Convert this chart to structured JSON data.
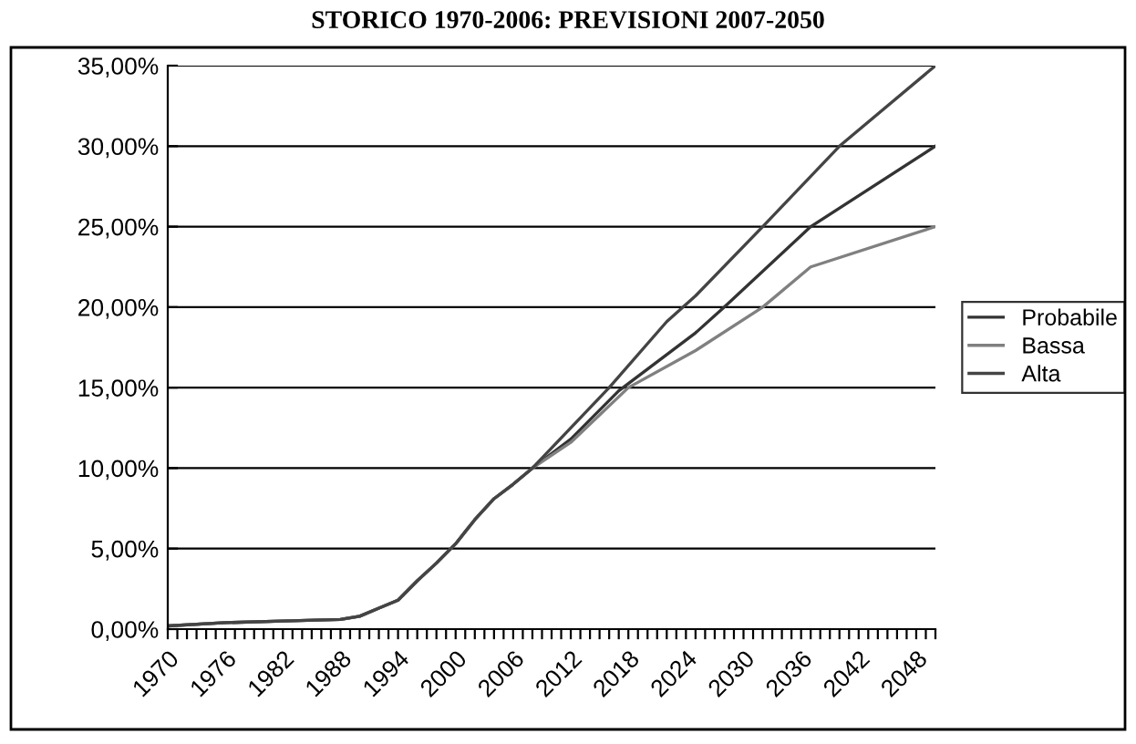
{
  "chart_data": {
    "type": "line",
    "title": "STORICO 1970-2006: PREVISIONI 2007-2050",
    "xlim": [
      1970,
      2050
    ],
    "ylim": [
      0,
      35
    ],
    "yticks": [
      {
        "value": 0,
        "label": "0,00%"
      },
      {
        "value": 5,
        "label": "5,00%"
      },
      {
        "value": 10,
        "label": "10,00%"
      },
      {
        "value": 15,
        "label": "15,00%"
      },
      {
        "value": 20,
        "label": "20,00%"
      },
      {
        "value": 25,
        "label": "25,00%"
      },
      {
        "value": 30,
        "label": "30,00%"
      },
      {
        "value": 35,
        "label": "35,00%"
      }
    ],
    "xticks": [
      1970,
      {
        "value": 1971,
        "label": null
      },
      {
        "value": 1972,
        "label": null
      },
      {
        "value": 1973,
        "label": null
      },
      {
        "value": 1974,
        "label": null
      },
      {
        "value": 1975,
        "label": null
      },
      1976,
      {
        "value": 1977,
        "label": null
      },
      {
        "value": 1978,
        "label": null
      },
      {
        "value": 1979,
        "label": null
      },
      {
        "value": 1980,
        "label": null
      },
      {
        "value": 1981,
        "label": null
      },
      1982,
      {
        "value": 1983,
        "label": null
      },
      {
        "value": 1984,
        "label": null
      },
      {
        "value": 1985,
        "label": null
      },
      {
        "value": 1986,
        "label": null
      },
      {
        "value": 1987,
        "label": null
      },
      1988,
      {
        "value": 1989,
        "label": null
      },
      {
        "value": 1990,
        "label": null
      },
      {
        "value": 1991,
        "label": null
      },
      {
        "value": 1992,
        "label": null
      },
      {
        "value": 1993,
        "label": null
      },
      1994,
      {
        "value": 1995,
        "label": null
      },
      {
        "value": 1996,
        "label": null
      },
      {
        "value": 1997,
        "label": null
      },
      {
        "value": 1998,
        "label": null
      },
      {
        "value": 1999,
        "label": null
      },
      2000,
      {
        "value": 2001,
        "label": null
      },
      {
        "value": 2002,
        "label": null
      },
      {
        "value": 2003,
        "label": null
      },
      {
        "value": 2004,
        "label": null
      },
      {
        "value": 2005,
        "label": null
      },
      2006,
      {
        "value": 2007,
        "label": null
      },
      {
        "value": 2008,
        "label": null
      },
      {
        "value": 2009,
        "label": null
      },
      {
        "value": 2010,
        "label": null
      },
      {
        "value": 2011,
        "label": null
      },
      2012,
      {
        "value": 2013,
        "label": null
      },
      {
        "value": 2014,
        "label": null
      },
      {
        "value": 2015,
        "label": null
      },
      {
        "value": 2016,
        "label": null
      },
      {
        "value": 2017,
        "label": null
      },
      2018,
      {
        "value": 2019,
        "label": null
      },
      {
        "value": 2020,
        "label": null
      },
      {
        "value": 2021,
        "label": null
      },
      {
        "value": 2022,
        "label": null
      },
      {
        "value": 2023,
        "label": null
      },
      2024,
      {
        "value": 2025,
        "label": null
      },
      {
        "value": 2026,
        "label": null
      },
      {
        "value": 2027,
        "label": null
      },
      {
        "value": 2028,
        "label": null
      },
      {
        "value": 2029,
        "label": null
      },
      2030,
      {
        "value": 2031,
        "label": null
      },
      {
        "value": 2032,
        "label": null
      },
      {
        "value": 2033,
        "label": null
      },
      {
        "value": 2034,
        "label": null
      },
      {
        "value": 2035,
        "label": null
      },
      2036,
      {
        "value": 2037,
        "label": null
      },
      {
        "value": 2038,
        "label": null
      },
      {
        "value": 2039,
        "label": null
      },
      {
        "value": 2040,
        "label": null
      },
      {
        "value": 2041,
        "label": null
      },
      2042,
      {
        "value": 2043,
        "label": null
      },
      {
        "value": 2044,
        "label": null
      },
      {
        "value": 2045,
        "label": null
      },
      {
        "value": 2046,
        "label": null
      },
      {
        "value": 2047,
        "label": null
      },
      2048,
      {
        "value": 2049,
        "label": null
      },
      {
        "value": 2050,
        "label": null
      }
    ],
    "grid": "y",
    "legend": "right",
    "marker": "none",
    "line_style": "solid",
    "series": [
      {
        "name": "Probabile",
        "color": "#333333",
        "x": [
          1970,
          1976,
          1982,
          1988,
          1990,
          1992,
          1994,
          1996,
          1998,
          2000,
          2002,
          2004,
          2006,
          2008,
          2012,
          2017,
          2025,
          2028,
          2037,
          2050
        ],
        "values": [
          0.2,
          0.4,
          0.5,
          0.6,
          0.8,
          1.3,
          1.8,
          3.0,
          4.1,
          5.3,
          6.8,
          8.1,
          9.0,
          10.0,
          11.8,
          14.8,
          18.4,
          20.0,
          25.0,
          30.0
        ]
      },
      {
        "name": "Bassa",
        "color": "#808080",
        "x": [
          1970,
          1976,
          1982,
          1988,
          1990,
          1992,
          1994,
          1996,
          1998,
          2000,
          2002,
          2004,
          2006,
          2008,
          2012,
          2018,
          2025,
          2032,
          2037,
          2050
        ],
        "values": [
          0.2,
          0.4,
          0.5,
          0.6,
          0.8,
          1.3,
          1.8,
          3.0,
          4.1,
          5.3,
          6.8,
          8.1,
          9.0,
          10.0,
          11.6,
          15.0,
          17.3,
          20.0,
          22.5,
          25.0
        ]
      },
      {
        "name": "Alta",
        "color": "#444444",
        "x": [
          1970,
          1976,
          1982,
          1988,
          1990,
          1992,
          1994,
          1996,
          1998,
          2000,
          2002,
          2004,
          2006,
          2008,
          2016,
          2022,
          2025,
          2032,
          2040,
          2050
        ],
        "values": [
          0.2,
          0.4,
          0.5,
          0.6,
          0.8,
          1.3,
          1.8,
          3.0,
          4.1,
          5.3,
          6.8,
          8.1,
          9.0,
          10.0,
          15.0,
          19.1,
          20.7,
          25.0,
          30.0,
          35.0
        ]
      }
    ]
  }
}
